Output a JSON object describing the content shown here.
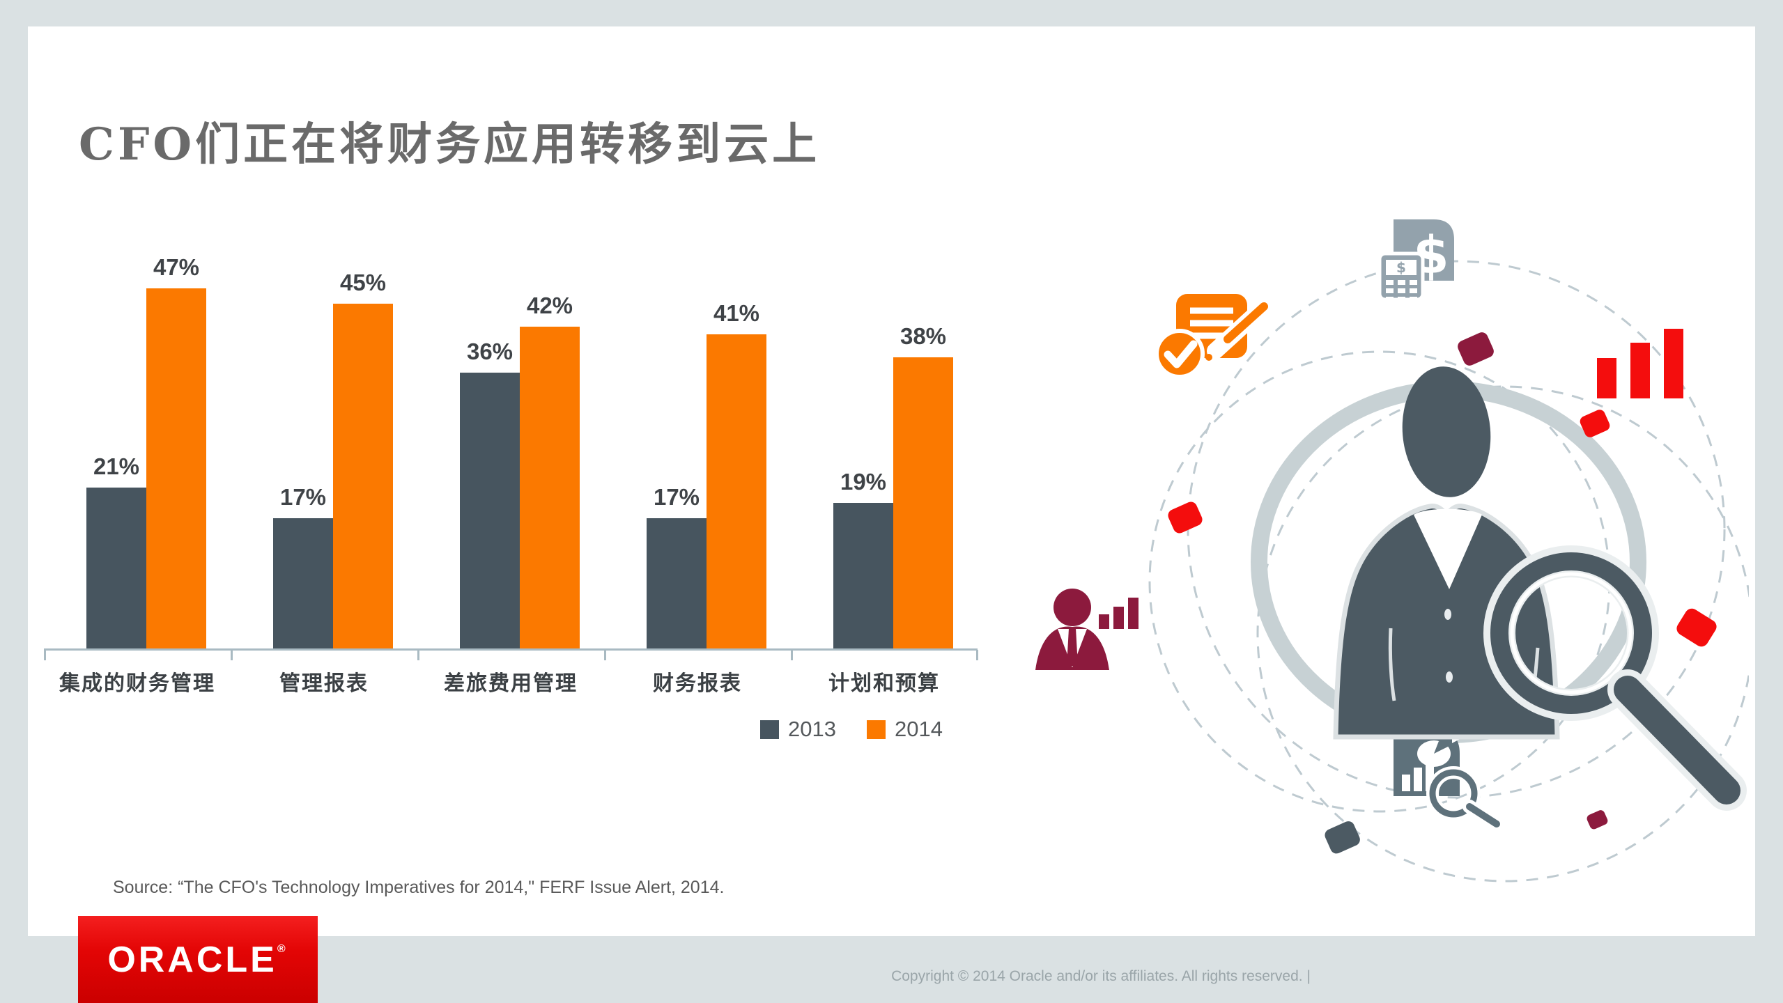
{
  "slide": {
    "title": "CFO们正在将财务应用转移到云上",
    "source": "Source: “The CFO's Technology Imperatives for 2014,\" FERF Issue Alert, 2014.",
    "footer": {
      "logo_text": "ORACLE",
      "registered_mark": "®",
      "copyright": "Copyright © 2014 Oracle and/or its affiliates. All rights reserved.  |"
    },
    "colors": {
      "page_background": "#DAE1E3",
      "slide_background": "#FFFFFF",
      "title_gray": "#6A6A6A",
      "oracle_red": "#E30505",
      "axis_gray": "#A9BAC2"
    }
  },
  "chart_data": {
    "type": "bar",
    "title": "",
    "categories": [
      "集成的财务管理",
      "管理报表",
      "差旅费用管理",
      "财务报表",
      "计划和预算"
    ],
    "series": [
      {
        "name": "2013",
        "color": "#47555F",
        "values": [
          21,
          17,
          36,
          17,
          19
        ]
      },
      {
        "name": "2014",
        "color": "#FB7900",
        "values": [
          47,
          45,
          42,
          41,
          38
        ]
      }
    ],
    "value_suffix": "%",
    "xlabel": "",
    "ylabel": "",
    "ylim": [
      0,
      50
    ],
    "grid": false,
    "legend_position": "bottom-right",
    "data_labels": true
  },
  "illustration": {
    "description": "CFO silhouette inside ring inspected by magnifying glass, orbited by finance application icons on dashed paths",
    "icons": [
      {
        "name": "approved-note-icon",
        "color": "#FB7900"
      },
      {
        "name": "calculator-document-icon",
        "color": "#93A2AC"
      },
      {
        "name": "growth-bars-icon",
        "color": "#F40D0D"
      },
      {
        "name": "presenter-person-icon",
        "color": "#8C1A3D"
      },
      {
        "name": "report-pie-document-icon",
        "color": "#5E717B"
      },
      {
        "name": "cfo-person-icon",
        "color": "#4C5A63"
      },
      {
        "name": "magnifying-glass-icon",
        "color": "#4C5A63"
      }
    ]
  }
}
